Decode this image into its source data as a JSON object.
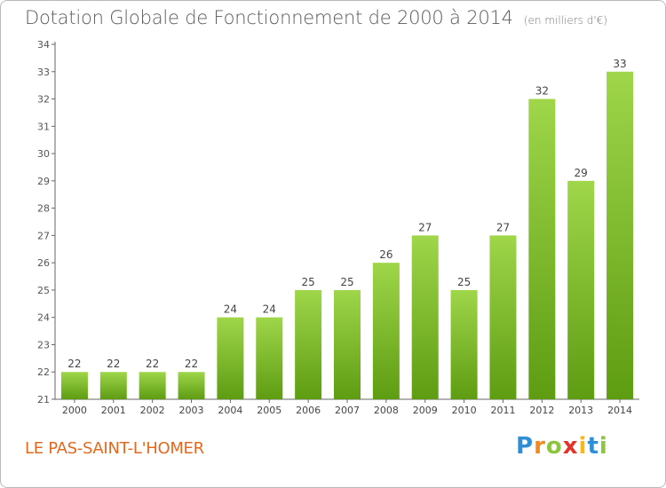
{
  "chart_data": {
    "type": "bar",
    "title": "Dotation Globale de Fonctionnement de 2000 à 2014",
    "subtitle": "(en milliers d'€)",
    "categories": [
      "2000",
      "2001",
      "2002",
      "2003",
      "2004",
      "2005",
      "2006",
      "2007",
      "2008",
      "2009",
      "2010",
      "2011",
      "2012",
      "2013",
      "2014"
    ],
    "values": [
      22,
      22,
      22,
      22,
      24,
      24,
      25,
      25,
      26,
      27,
      25,
      27,
      32,
      29,
      33
    ],
    "ylim": [
      21,
      34
    ],
    "yticks": [
      21,
      22,
      23,
      24,
      25,
      26,
      27,
      28,
      29,
      30,
      31,
      32,
      33,
      34
    ],
    "xlabel": "",
    "ylabel": "",
    "grid": false,
    "colors": {
      "bar_top": "#9fd64a",
      "bar_bottom": "#5e9c12",
      "label": "#444444",
      "axis": "#666666"
    }
  },
  "footer": {
    "commune": "LE PAS-SAINT-L'HOMER",
    "logo_text": "Proxiti",
    "logo_letters": [
      {
        "ch": "P",
        "color": "#2f8fd6"
      },
      {
        "ch": "r",
        "color": "#f08a1c"
      },
      {
        "ch": "o",
        "color": "#8cc63f"
      },
      {
        "ch": "x",
        "color": "#e4322b"
      },
      {
        "ch": "i",
        "color": "#f6b81a"
      },
      {
        "ch": "t",
        "color": "#2f8fd6"
      },
      {
        "ch": "i",
        "color": "#8cc63f"
      }
    ]
  }
}
